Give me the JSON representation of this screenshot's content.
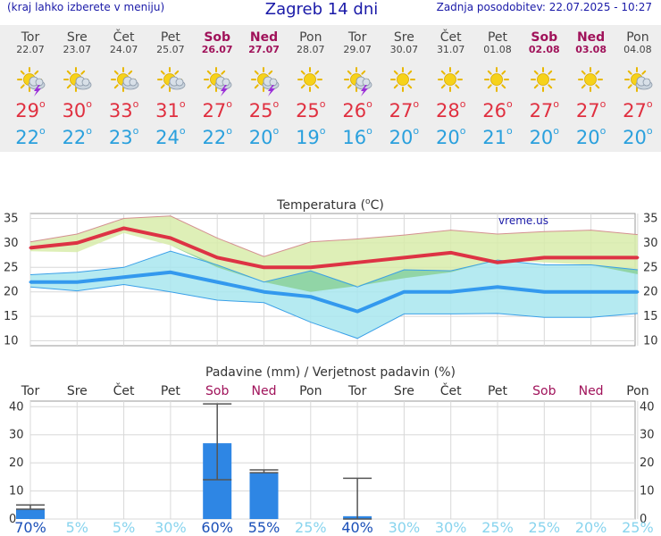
{
  "header": {
    "left_note": "(kraj lahko izberete v meniju)",
    "title": "Zagreb 14 dni",
    "updated": "Zadnja posodobitev: 22.07.2025 - 10:27"
  },
  "days": [
    {
      "name": "Tor",
      "date": "22.07",
      "weekend": false,
      "icon": "sun-cloud-lightning-icon",
      "tmax": "29",
      "tmin": "22"
    },
    {
      "name": "Sre",
      "date": "23.07",
      "weekend": false,
      "icon": "sun-cloud-icon",
      "tmax": "30",
      "tmin": "22"
    },
    {
      "name": "Čet",
      "date": "24.07",
      "weekend": false,
      "icon": "sun-cloud-icon",
      "tmax": "33",
      "tmin": "23"
    },
    {
      "name": "Pet",
      "date": "25.07",
      "weekend": false,
      "icon": "sun-cloud-icon",
      "tmax": "31",
      "tmin": "24"
    },
    {
      "name": "Sob",
      "date": "26.07",
      "weekend": true,
      "icon": "sun-cloud-lightning-icon",
      "tmax": "27",
      "tmin": "22"
    },
    {
      "name": "Ned",
      "date": "27.07",
      "weekend": true,
      "icon": "sun-cloud-lightning-icon",
      "tmax": "25",
      "tmin": "20"
    },
    {
      "name": "Pon",
      "date": "28.07",
      "weekend": false,
      "icon": "sun-icon",
      "tmax": "25",
      "tmin": "19"
    },
    {
      "name": "Tor",
      "date": "29.07",
      "weekend": false,
      "icon": "sun-cloud-lightning-icon",
      "tmax": "26",
      "tmin": "16"
    },
    {
      "name": "Sre",
      "date": "30.07",
      "weekend": false,
      "icon": "sun-icon",
      "tmax": "27",
      "tmin": "20"
    },
    {
      "name": "Čet",
      "date": "31.07",
      "weekend": false,
      "icon": "sun-icon",
      "tmax": "28",
      "tmin": "20"
    },
    {
      "name": "Pet",
      "date": "01.08",
      "weekend": false,
      "icon": "sun-icon",
      "tmax": "26",
      "tmin": "21"
    },
    {
      "name": "Sob",
      "date": "02.08",
      "weekend": true,
      "icon": "sun-icon",
      "tmax": "27",
      "tmin": "20"
    },
    {
      "name": "Ned",
      "date": "03.08",
      "weekend": true,
      "icon": "sun-icon",
      "tmax": "27",
      "tmin": "20"
    },
    {
      "name": "Pon",
      "date": "04.08",
      "weekend": false,
      "icon": "sun-cloud-icon",
      "tmax": "27",
      "tmin": "20"
    }
  ],
  "chart_data": [
    {
      "type": "line",
      "title": "Temperatura (°C)",
      "title_main": "Temperatura (",
      "title_sup": "o",
      "title_end": "C)",
      "watermark": "vreme.us",
      "ylim": [
        9,
        36
      ],
      "yticks": [
        "35",
        "30",
        "25",
        "20",
        "15",
        "10"
      ],
      "grid": true,
      "series": [
        {
          "role": "max",
          "values": [
            29,
            30,
            33,
            31,
            27,
            25,
            25,
            26,
            27,
            28,
            26,
            27,
            27,
            27
          ],
          "color": "#dd3344"
        },
        {
          "role": "min",
          "values": [
            22,
            22,
            23,
            24,
            22,
            20,
            19,
            16,
            20,
            20,
            21,
            20,
            20,
            20
          ],
          "color": "#3399ee"
        }
      ],
      "max_range": {
        "upper": [
          30.2,
          31.8,
          35,
          35.5,
          31,
          27.2,
          30.2,
          30.8,
          31.6,
          32.6,
          31.8,
          32.3,
          32.6,
          31.7
        ],
        "lower": [
          28.3,
          28.1,
          32,
          29.5,
          25,
          22,
          20,
          21.2,
          22.8,
          24,
          26.5,
          26,
          25.5,
          23.6
        ],
        "color": "#d8ecaa"
      },
      "min_range": {
        "upper": [
          23.5,
          24,
          25,
          28.3,
          25.5,
          22,
          24.3,
          21,
          24.5,
          24.3,
          26.5,
          25.5,
          25.5,
          24.5
        ],
        "lower": [
          21,
          20.2,
          21.5,
          20,
          18.3,
          17.8,
          13.8,
          10.5,
          15.5,
          15.5,
          15.6,
          14.8,
          14.8,
          15.6
        ],
        "color": "#a8e6ee"
      },
      "colors": {
        "overlap": "#8ed39e"
      }
    },
    {
      "type": "bar",
      "title": "Padavine (mm) / Verjetnost padavin (%)",
      "categories": [
        "Tor",
        "Sre",
        "Čet",
        "Pet",
        "Sob",
        "Ned",
        "Pon",
        "Tor",
        "Sre",
        "Čet",
        "Pet",
        "Sob",
        "Ned",
        "Pon"
      ],
      "weekend": [
        false,
        false,
        false,
        false,
        true,
        true,
        false,
        false,
        false,
        false,
        false,
        true,
        true,
        false
      ],
      "values": [
        3.5,
        0,
        0,
        0,
        27,
        16.5,
        0,
        1,
        0,
        0,
        0,
        0,
        0,
        0
      ],
      "err_low": [
        3.5,
        0,
        0,
        0,
        14,
        16.5,
        0,
        0,
        0,
        0,
        0,
        0,
        0,
        0
      ],
      "err_high": [
        5,
        0,
        0,
        0,
        41,
        17.5,
        0,
        14.5,
        0,
        0,
        0,
        0,
        0,
        0
      ],
      "probability": [
        "70%",
        "5%",
        "5%",
        "30%",
        "60%",
        "55%",
        "25%",
        "40%",
        "30%",
        "30%",
        "25%",
        "25%",
        "20%",
        "25%"
      ],
      "prob_strong": [
        true,
        false,
        false,
        false,
        true,
        true,
        false,
        true,
        false,
        false,
        false,
        false,
        false,
        false
      ],
      "yticks": [
        "40",
        "30",
        "20",
        "10",
        "0"
      ],
      "ylim": [
        0,
        42
      ],
      "colors": {
        "bar": "#2e86e4",
        "prob_strong": "#1a4fb8",
        "prob_weak": "#88d4ee"
      }
    }
  ]
}
